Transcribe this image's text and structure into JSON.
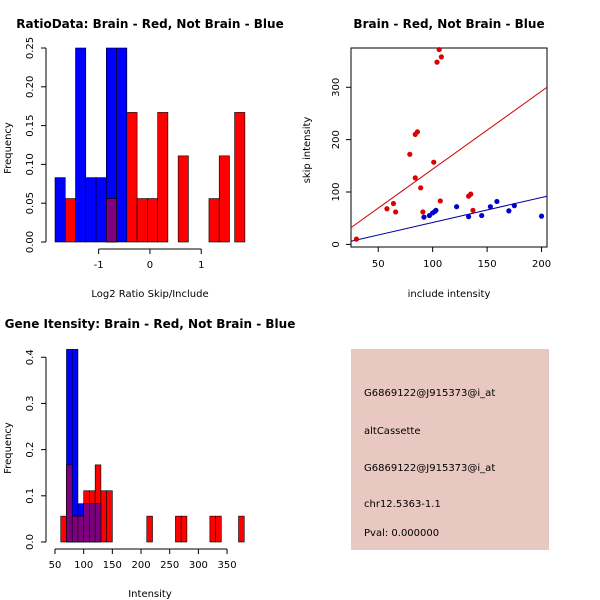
{
  "colors": {
    "red": "#ff0000",
    "blue": "#0000ff",
    "overlap": "#7f007f",
    "info_bg": "#e8c8c0",
    "pval": "#cc0000",
    "red_line": "#cc0000",
    "blue_line": "#000099"
  },
  "chart_data": [
    {
      "type": "histogram",
      "title": "RatioData: Brain - Red, Not Brain - Blue",
      "xlabel": "Log2 Ratio Skip/Include",
      "ylabel": "Frequency",
      "xlim": [
        -1.85,
        1.95
      ],
      "ylim": [
        0,
        0.25
      ],
      "xticks": [
        -1,
        0,
        1
      ],
      "xtick_labels": [
        "-1",
        "0",
        "1"
      ],
      "yticks": [
        0,
        0.05,
        0.1,
        0.15,
        0.2,
        0.25
      ],
      "ytick_labels": [
        "0.00",
        "0.05",
        "0.10",
        "0.15",
        "0.20",
        "0.25"
      ],
      "series": [
        {
          "name": "Brain",
          "color": "red",
          "bins": [
            {
              "x0": -1.65,
              "x1": -1.45,
              "value": 0.056
            },
            {
              "x0": -0.85,
              "x1": -0.65,
              "value": 0.056
            },
            {
              "x0": -0.45,
              "x1": -0.25,
              "value": 0.167
            },
            {
              "x0": -0.25,
              "x1": -0.05,
              "value": 0.056
            },
            {
              "x0": -0.05,
              "x1": 0.15,
              "value": 0.056
            },
            {
              "x0": 0.15,
              "x1": 0.35,
              "value": 0.167
            },
            {
              "x0": 0.55,
              "x1": 0.75,
              "value": 0.111
            },
            {
              "x0": 1.15,
              "x1": 1.35,
              "value": 0.056
            },
            {
              "x0": 1.35,
              "x1": 1.55,
              "value": 0.111
            },
            {
              "x0": 1.65,
              "x1": 1.85,
              "value": 0.167
            }
          ]
        },
        {
          "name": "Not Brain",
          "color": "blue",
          "bins": [
            {
              "x0": -1.85,
              "x1": -1.65,
              "value": 0.083
            },
            {
              "x0": -1.45,
              "x1": -1.25,
              "value": 0.25
            },
            {
              "x0": -1.25,
              "x1": -1.05,
              "value": 0.083
            },
            {
              "x0": -1.05,
              "x1": -0.85,
              "value": 0.083
            },
            {
              "x0": -0.85,
              "x1": -0.65,
              "value": 0.25
            },
            {
              "x0": -0.65,
              "x1": -0.45,
              "value": 0.25
            }
          ]
        }
      ]
    },
    {
      "type": "scatter",
      "title": "Brain - Red, Not Brain - Blue",
      "xlabel": "include intensity",
      "ylabel": "skip intensity",
      "xlim": [
        25,
        205
      ],
      "ylim": [
        -5,
        375
      ],
      "xticks": [
        50,
        100,
        150,
        200
      ],
      "xtick_labels": [
        "50",
        "100",
        "150",
        "200"
      ],
      "yticks": [
        0,
        100,
        200,
        300
      ],
      "ytick_labels": [
        "0",
        "100",
        "200",
        "300"
      ],
      "series": [
        {
          "name": "Brain",
          "color": "red",
          "points": [
            [
              30,
              10
            ],
            [
              58,
              68
            ],
            [
              64,
              78
            ],
            [
              66,
              62
            ],
            [
              79,
              172
            ],
            [
              84,
              210
            ],
            [
              86,
              215
            ],
            [
              84,
              127
            ],
            [
              89,
              108
            ],
            [
              91,
              62
            ],
            [
              101,
              157
            ],
            [
              104,
              348
            ],
            [
              106,
              372
            ],
            [
              108,
              358
            ],
            [
              107,
              83
            ],
            [
              133,
              92
            ],
            [
              135,
              96
            ],
            [
              137,
              65
            ]
          ],
          "fit": [
            [
              25,
              32
            ],
            [
              205,
              300
            ]
          ]
        },
        {
          "name": "Not Brain",
          "color": "blue",
          "points": [
            [
              92,
              52
            ],
            [
              97,
              55
            ],
            [
              100,
              60
            ],
            [
              102,
              63
            ],
            [
              103,
              65
            ],
            [
              122,
              72
            ],
            [
              133,
              53
            ],
            [
              145,
              55
            ],
            [
              153,
              72
            ],
            [
              159,
              82
            ],
            [
              170,
              64
            ],
            [
              175,
              74
            ],
            [
              200,
              54
            ]
          ],
          "fit": [
            [
              25,
              6
            ],
            [
              205,
              92
            ]
          ]
        }
      ]
    },
    {
      "type": "histogram",
      "title": "Gene Itensity: Brain - Red, Not Brain - Blue",
      "xlabel": "Intensity",
      "ylabel": "Frequency",
      "xlim": [
        50,
        390
      ],
      "ylim": [
        0,
        0.42
      ],
      "xticks": [
        50,
        100,
        150,
        200,
        250,
        300,
        350
      ],
      "xtick_labels": [
        "50",
        "100",
        "150",
        "200",
        "250",
        "300",
        "350"
      ],
      "yticks": [
        0,
        0.1,
        0.2,
        0.3,
        0.4
      ],
      "ytick_labels": [
        "0.0",
        "0.1",
        "0.2",
        "0.3",
        "0.4"
      ],
      "series": [
        {
          "name": "Brain",
          "color": "red",
          "bins": [
            {
              "x0": 60,
              "x1": 70,
              "value": 0.056
            },
            {
              "x0": 70,
              "x1": 80,
              "value": 0.167
            },
            {
              "x0": 80,
              "x1": 90,
              "value": 0.056
            },
            {
              "x0": 90,
              "x1": 100,
              "value": 0.056
            },
            {
              "x0": 100,
              "x1": 110,
              "value": 0.111
            },
            {
              "x0": 110,
              "x1": 120,
              "value": 0.111
            },
            {
              "x0": 120,
              "x1": 130,
              "value": 0.167
            },
            {
              "x0": 130,
              "x1": 140,
              "value": 0.111
            },
            {
              "x0": 140,
              "x1": 150,
              "value": 0.111
            },
            {
              "x0": 210,
              "x1": 220,
              "value": 0.056
            },
            {
              "x0": 260,
              "x1": 270,
              "value": 0.056
            },
            {
              "x0": 270,
              "x1": 280,
              "value": 0.056
            },
            {
              "x0": 320,
              "x1": 330,
              "value": 0.056
            },
            {
              "x0": 330,
              "x1": 340,
              "value": 0.056
            },
            {
              "x0": 370,
              "x1": 380,
              "value": 0.056
            }
          ]
        },
        {
          "name": "Not Brain",
          "color": "blue",
          "bins": [
            {
              "x0": 70,
              "x1": 80,
              "value": 0.417
            },
            {
              "x0": 80,
              "x1": 90,
              "value": 0.417
            },
            {
              "x0": 90,
              "x1": 100,
              "value": 0.083
            },
            {
              "x0": 100,
              "x1": 110,
              "value": 0.083
            },
            {
              "x0": 110,
              "x1": 120,
              "value": 0.083
            },
            {
              "x0": 120,
              "x1": 130,
              "value": 0.083
            }
          ]
        }
      ]
    }
  ],
  "info_panel": {
    "line1": "G6869122@J915373@i_at",
    "line2": "altCassette",
    "line3": "G6869122@J915373@i_at",
    "line4": "chr12.5363-1.1",
    "pval": "Pval: 0.000000"
  }
}
